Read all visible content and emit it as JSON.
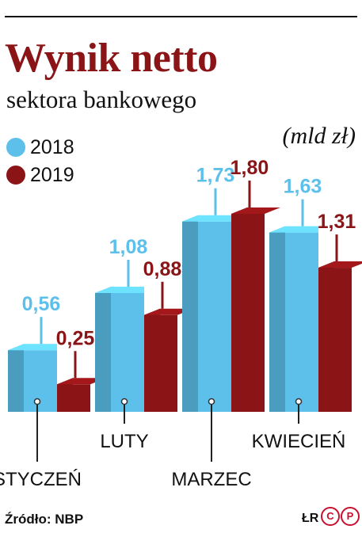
{
  "header": {
    "title": "Wynik netto",
    "subtitle": "sektora bankowego",
    "unit": "(mld zł)"
  },
  "legend": [
    {
      "label": "2018",
      "color": "#5cc0ea"
    },
    {
      "label": "2019",
      "color": "#8b1417"
    }
  ],
  "chart_data": {
    "type": "bar",
    "title": "Wynik netto",
    "subtitle": "sektora bankowego",
    "ylabel": "(mld zł)",
    "categories": [
      "STYCZEŃ",
      "LUTY",
      "MARZEC",
      "KWIECIEŃ"
    ],
    "series": [
      {
        "name": "2018",
        "values": [
          0.56,
          1.08,
          1.73,
          1.63
        ],
        "labels": [
          "0,56",
          "1,08",
          "1,73",
          "1,63"
        ],
        "color": "#5cc0ea"
      },
      {
        "name": "2019",
        "values": [
          0.25,
          0.88,
          1.8,
          1.31
        ],
        "labels": [
          "0,25",
          "0,88",
          "1,80",
          "1,31"
        ],
        "color": "#8b1417"
      }
    ],
    "ylim": [
      0,
      1.8
    ],
    "grid": false,
    "legend_position": "top-left"
  },
  "footer": {
    "source": "Źródło: NBP",
    "credit": "ŁR",
    "logo_letters": [
      "C",
      "P"
    ]
  }
}
